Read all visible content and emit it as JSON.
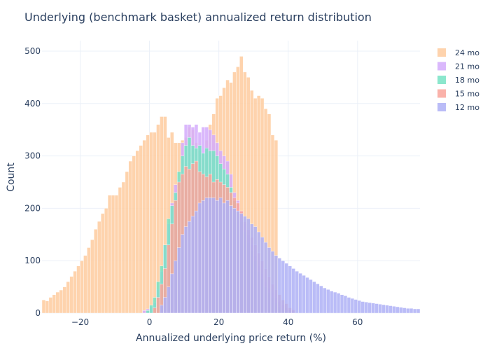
{
  "chart_data": {
    "type": "bar",
    "barmode": "overlay",
    "title": "Underlying (benchmark basket) annualized return distribution",
    "xlabel": "Annualized underlying price return (%)",
    "ylabel": "Count",
    "xlim": [
      -31,
      78
    ],
    "ylim": [
      0,
      520
    ],
    "x_ticks": [
      -20,
      0,
      20,
      40,
      60
    ],
    "y_ticks": [
      0,
      100,
      200,
      300,
      400,
      500
    ],
    "grid": true,
    "legend_position": "top-right",
    "bin_width": 1,
    "series": [
      {
        "name": "24 mo",
        "color": "#FECB9F",
        "start": -31,
        "values": [
          25,
          23,
          30,
          35,
          40,
          44,
          50,
          60,
          70,
          80,
          90,
          100,
          110,
          125,
          140,
          160,
          175,
          190,
          200,
          225,
          225,
          225,
          240,
          250,
          270,
          290,
          300,
          310,
          320,
          330,
          340,
          345,
          345,
          360,
          375,
          375,
          335,
          345,
          325,
          325,
          330,
          335,
          355,
          350,
          325,
          310,
          295,
          330,
          360,
          380,
          410,
          415,
          430,
          445,
          440,
          460,
          470,
          490,
          460,
          450,
          425,
          410,
          415,
          410,
          390,
          380,
          340,
          330
        ]
      },
      {
        "name": "21 mo",
        "color": "#D4ACFB",
        "start": -2,
        "values": [
          5,
          8,
          12,
          20,
          45,
          80,
          130,
          170,
          210,
          245,
          255,
          325,
          360,
          360,
          355,
          360,
          345,
          355,
          355,
          350,
          340,
          325,
          310,
          300,
          290,
          265,
          230,
          215,
          195,
          170,
          150,
          130,
          110,
          90,
          75,
          60,
          48,
          40,
          30,
          22,
          15,
          10,
          6,
          3
        ]
      },
      {
        "name": "18 mo",
        "color": "#77E3C4",
        "start": -1,
        "values": [
          5,
          15,
          30,
          60,
          90,
          130,
          180,
          205,
          230,
          270,
          300,
          320,
          335,
          320,
          315,
          320,
          305,
          315,
          310,
          310,
          300,
          285,
          275,
          265,
          240,
          215,
          195,
          175,
          155,
          135,
          120,
          100,
          80,
          65,
          50,
          40,
          30,
          20,
          12,
          8,
          5
        ]
      },
      {
        "name": "15 mo",
        "color": "#F9A59B",
        "start": 1,
        "values": [
          10,
          30,
          55,
          85,
          130,
          170,
          215,
          250,
          265,
          280,
          275,
          285,
          290,
          270,
          265,
          260,
          265,
          250,
          255,
          250,
          245,
          240,
          230,
          220,
          210,
          195,
          175,
          160,
          145,
          130,
          115,
          100,
          85,
          70,
          55,
          45,
          35,
          25,
          18,
          10,
          6
        ]
      },
      {
        "name": "12 mo",
        "color": "#AEB0F6",
        "start": 3,
        "values": [
          15,
          30,
          50,
          75,
          100,
          125,
          150,
          165,
          175,
          185,
          195,
          210,
          215,
          220,
          220,
          220,
          215,
          220,
          210,
          215,
          205,
          200,
          195,
          190,
          185,
          180,
          170,
          165,
          155,
          145,
          135,
          125,
          118,
          110,
          105,
          100,
          95,
          90,
          85,
          80,
          76,
          72,
          68,
          64,
          60,
          56,
          52,
          48,
          45,
          42,
          40,
          38,
          35,
          33,
          30,
          28,
          26,
          24,
          22,
          21,
          20,
          19,
          18,
          17,
          16,
          15,
          14,
          13,
          12,
          11,
          10,
          9,
          9,
          8,
          8
        ]
      }
    ]
  }
}
